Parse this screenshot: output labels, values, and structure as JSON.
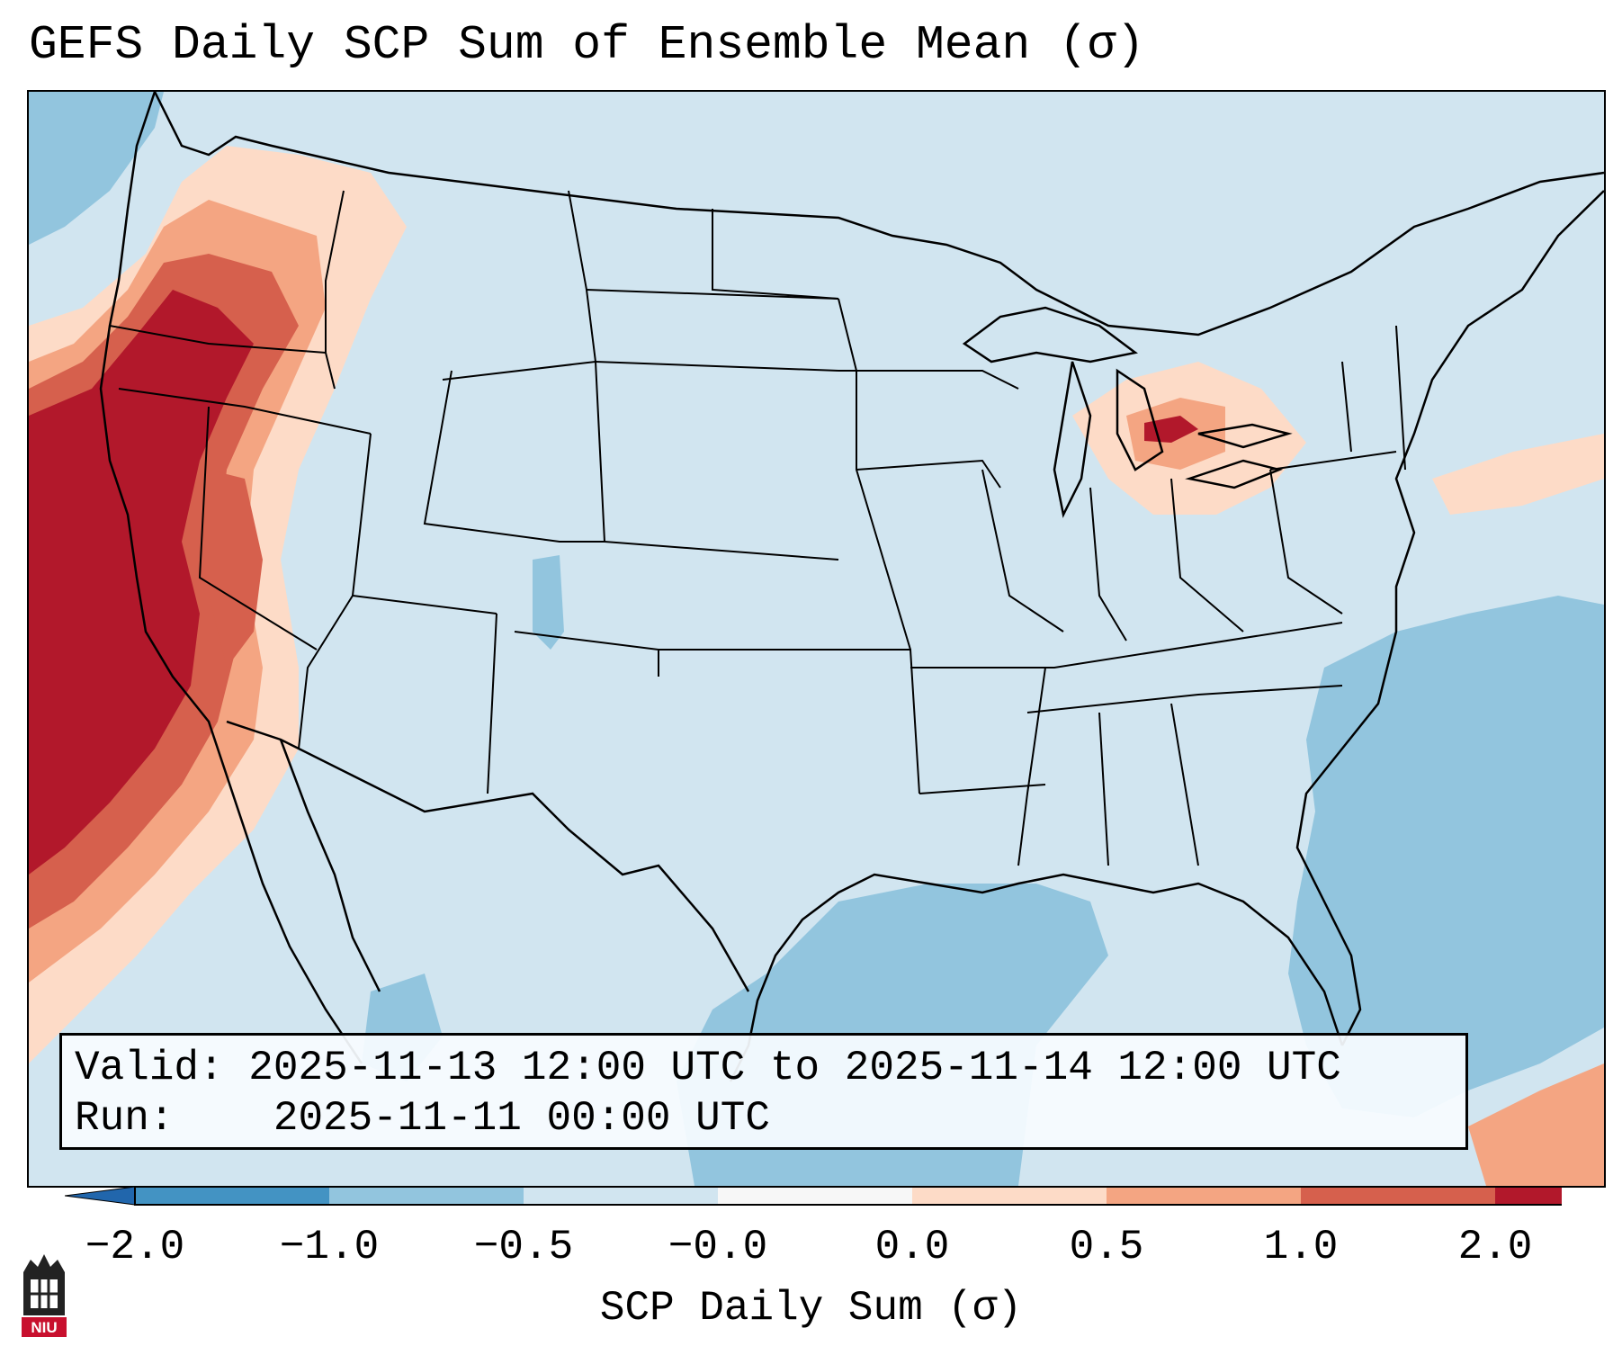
{
  "title": "GEFS Daily SCP Sum of Ensemble Mean (σ)",
  "info": {
    "valid_label": "Valid:",
    "valid_value": "2025-11-13 12:00 UTC to 2025-11-14 12:00 UTC",
    "run_label": "Run:",
    "run_value": "2025-11-11 00:00 UTC"
  },
  "colorbar": {
    "label": "SCP Daily Sum (σ)",
    "ticks": [
      "−2.0",
      "−1.0",
      "−0.5",
      "−0.0",
      "0.0",
      "0.5",
      "1.0",
      "2.0"
    ],
    "colors": [
      "#4393c3",
      "#92c5de",
      "#d1e5f0",
      "#f7f7f7",
      "#fddbc7",
      "#f4a582",
      "#d6604d",
      "#b2182b"
    ],
    "extend_low_color": "#2166ac",
    "extend_high_color": "#b2182b"
  },
  "logo": {
    "text": "NIU"
  },
  "colors": {
    "strong_pos": "#b2182b",
    "mid_pos": "#d6604d",
    "low_pos": "#f4a582",
    "faint_pos": "#fddbc7",
    "neutral": "#d1e5f0",
    "neg": "#92c5de"
  }
}
